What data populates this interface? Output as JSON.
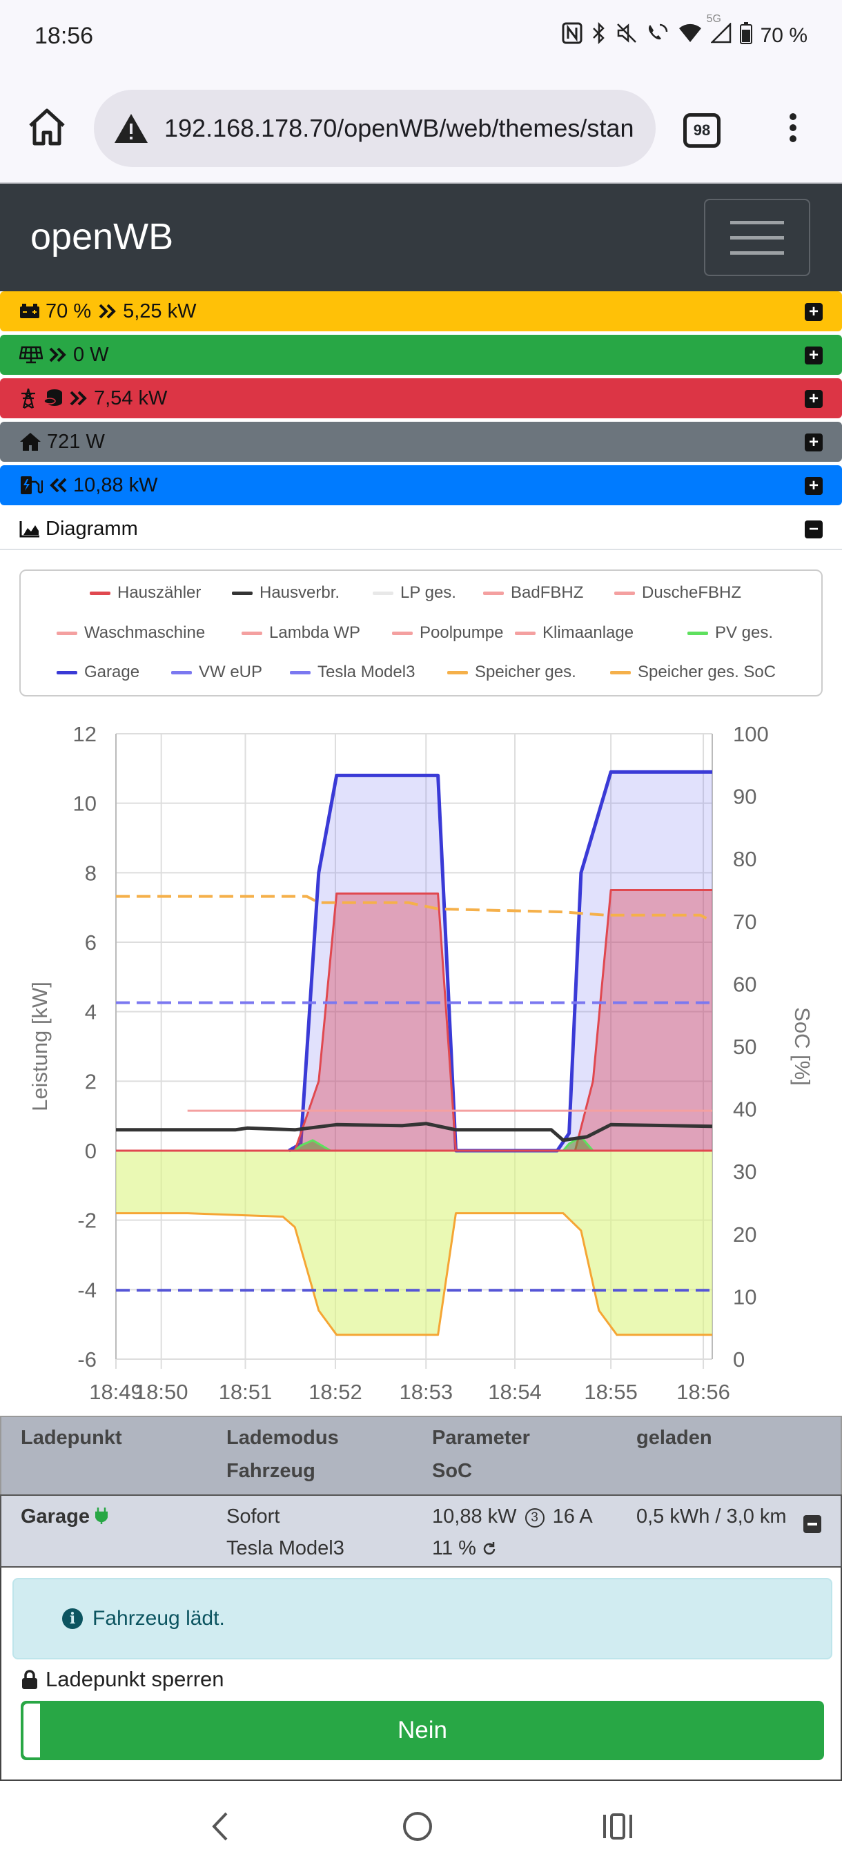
{
  "status_bar": {
    "time": "18:56",
    "battery": "70 %",
    "network": "5G"
  },
  "browser": {
    "url": "192.168.178.70/openWB/web/themes/stan",
    "tab_count": "98"
  },
  "navbar": {
    "brand": "openWB"
  },
  "rows": {
    "battery": "70 %",
    "battery_power": "5,25 kW",
    "pv": "0 W",
    "evu": "7,54 kW",
    "house": "721 W",
    "lp": "10,88 kW",
    "diagram": "Diagramm"
  },
  "legend": [
    {
      "label": "Hauszähler",
      "color": "#e0484f"
    },
    {
      "label": "Hausverbr.",
      "color": "#343434"
    },
    {
      "label": "LP ges.",
      "color": "#e8e8e8"
    },
    {
      "label": "BadFBHZ",
      "color": "#f4a0a0"
    },
    {
      "label": "DuscheFBHZ",
      "color": "#f4a0a0"
    },
    {
      "label": "Waschmaschine",
      "color": "#f4a0a0"
    },
    {
      "label": "Lambda WP",
      "color": "#f4a0a0"
    },
    {
      "label": "Poolpumpe",
      "color": "#f4a0a0"
    },
    {
      "label": "Klimaanlage",
      "color": "#f4a0a0"
    },
    {
      "label": "PV ges.",
      "color": "#5ee05e"
    },
    {
      "label": "Garage",
      "color": "#3a3ad6"
    },
    {
      "label": "VW eUP",
      "color": "#7b78f0"
    },
    {
      "label": "Tesla Model3",
      "color": "#7b78f0"
    },
    {
      "label": "Speicher ges.",
      "color": "#f5b04a"
    },
    {
      "label": "Speicher ges. SoC",
      "color": "#f5b04a"
    }
  ],
  "chart_data": {
    "type": "line",
    "ylabel_left": "Leistung [kW]",
    "ylabel_right": "SoC [%]",
    "ylim_left": [
      -6,
      12
    ],
    "ylim_right": [
      0,
      100
    ],
    "yticks_left": [
      "12",
      "10",
      "8",
      "6",
      "4",
      "2",
      "0",
      "-2",
      "-4",
      "-6"
    ],
    "yticks_right": [
      "100",
      "90",
      "80",
      "70",
      "60",
      "50",
      "40",
      "30",
      "20",
      "10",
      "0"
    ],
    "xticks": [
      "18:49",
      "18:50",
      "18:51",
      "18:52",
      "18:53",
      "18:54",
      "18:55",
      "18:56"
    ],
    "xrange": [
      0,
      100
    ],
    "xtick_pos": [
      0,
      7.6,
      21.7,
      36.8,
      52,
      66.9,
      83,
      98.5
    ],
    "grid": true,
    "series": [
      {
        "name": "Garage",
        "color": "#3a3ad6",
        "fill": "rgba(120,120,240,0.22)",
        "points": [
          [
            29,
            0
          ],
          [
            31,
            0.2
          ],
          [
            34,
            8
          ],
          [
            37,
            10.8
          ],
          [
            49,
            10.8
          ],
          [
            54,
            10.8
          ],
          [
            57,
            0
          ],
          [
            74,
            0
          ],
          [
            76,
            0.5
          ],
          [
            78,
            8
          ],
          [
            83,
            10.9
          ],
          [
            100,
            10.9
          ]
        ]
      },
      {
        "name": "Hauszähler",
        "color": "#e0484f",
        "fill": "rgba(220,60,80,0.38)",
        "points": [
          [
            0,
            0
          ],
          [
            30,
            0
          ],
          [
            34,
            2
          ],
          [
            37,
            7.4
          ],
          [
            54,
            7.4
          ],
          [
            57,
            0
          ],
          [
            77,
            0
          ],
          [
            80,
            2
          ],
          [
            83,
            7.5
          ],
          [
            100,
            7.5
          ]
        ]
      },
      {
        "name": "Hausverbr.",
        "color": "#343434",
        "points": [
          [
            0,
            0.6
          ],
          [
            20,
            0.6
          ],
          [
            22,
            0.65
          ],
          [
            30,
            0.6
          ],
          [
            37,
            0.75
          ],
          [
            48,
            0.72
          ],
          [
            52,
            0.78
          ],
          [
            57,
            0.6
          ],
          [
            73,
            0.6
          ],
          [
            75,
            0.3
          ],
          [
            79,
            0.4
          ],
          [
            83,
            0.75
          ],
          [
            100,
            0.7
          ]
        ]
      },
      {
        "name": "Speicher ges.",
        "color": "#f5a534",
        "fill": "rgba(220,245,130,0.6)",
        "points": [
          [
            0,
            -1.8
          ],
          [
            12,
            -1.8
          ],
          [
            28,
            -1.9
          ],
          [
            30,
            -2.2
          ],
          [
            34,
            -4.6
          ],
          [
            37,
            -5.3
          ],
          [
            49,
            -5.3
          ],
          [
            54,
            -5.3
          ],
          [
            57,
            -1.8
          ],
          [
            75,
            -1.8
          ],
          [
            78,
            -2.3
          ],
          [
            81,
            -4.6
          ],
          [
            84,
            -5.3
          ],
          [
            100,
            -5.3
          ]
        ]
      },
      {
        "name": "Speicher ges. SoC",
        "color": "#f5b04a",
        "dashed": true,
        "axis": "right",
        "points": [
          [
            0,
            74
          ],
          [
            32,
            74
          ],
          [
            34,
            73
          ],
          [
            49,
            73
          ],
          [
            54,
            72
          ],
          [
            75,
            71.5
          ],
          [
            82,
            71
          ],
          [
            98,
            71
          ],
          [
            100,
            70
          ]
        ]
      },
      {
        "name": "VW eUP",
        "color": "#7b78f0",
        "dashed": true,
        "axis": "right",
        "points": [
          [
            0,
            57
          ],
          [
            100,
            57
          ]
        ]
      },
      {
        "name": "Tesla Model3",
        "color": "#5555d6",
        "dashed": true,
        "axis": "right",
        "points": [
          [
            0,
            11
          ],
          [
            100,
            11
          ]
        ]
      },
      {
        "name": "Lambda WP",
        "color": "#f4a0a0",
        "points": [
          [
            12,
            1.15
          ],
          [
            100,
            1.15
          ]
        ]
      },
      {
        "name": "PV ges.",
        "color": "#5ee05e",
        "points": [
          [
            0,
            0
          ],
          [
            30,
            0
          ],
          [
            31,
            0.15
          ],
          [
            33,
            0.3
          ],
          [
            36,
            0
          ],
          [
            75,
            0
          ],
          [
            76,
            0.2
          ],
          [
            78,
            0.4
          ],
          [
            80,
            0
          ],
          [
            100,
            0
          ]
        ]
      }
    ]
  },
  "table": {
    "headers": {
      "col1": "Ladepunkt",
      "col2a": "Lademodus",
      "col2b": "Fahrzeug",
      "col3a": "Parameter",
      "col3b": "SoC",
      "col4": "geladen"
    },
    "row": {
      "name": "Garage",
      "mode": "Sofort",
      "vehicle": "Tesla Model3",
      "power": "10,88 kW",
      "phases": "3",
      "current": "16 A",
      "soc": "11 %",
      "charged": "0,5 kWh / 3,0 km"
    }
  },
  "alert": "Fahrzeug lädt.",
  "lock": {
    "label": "Ladepunkt sperren",
    "value": "Nein"
  }
}
